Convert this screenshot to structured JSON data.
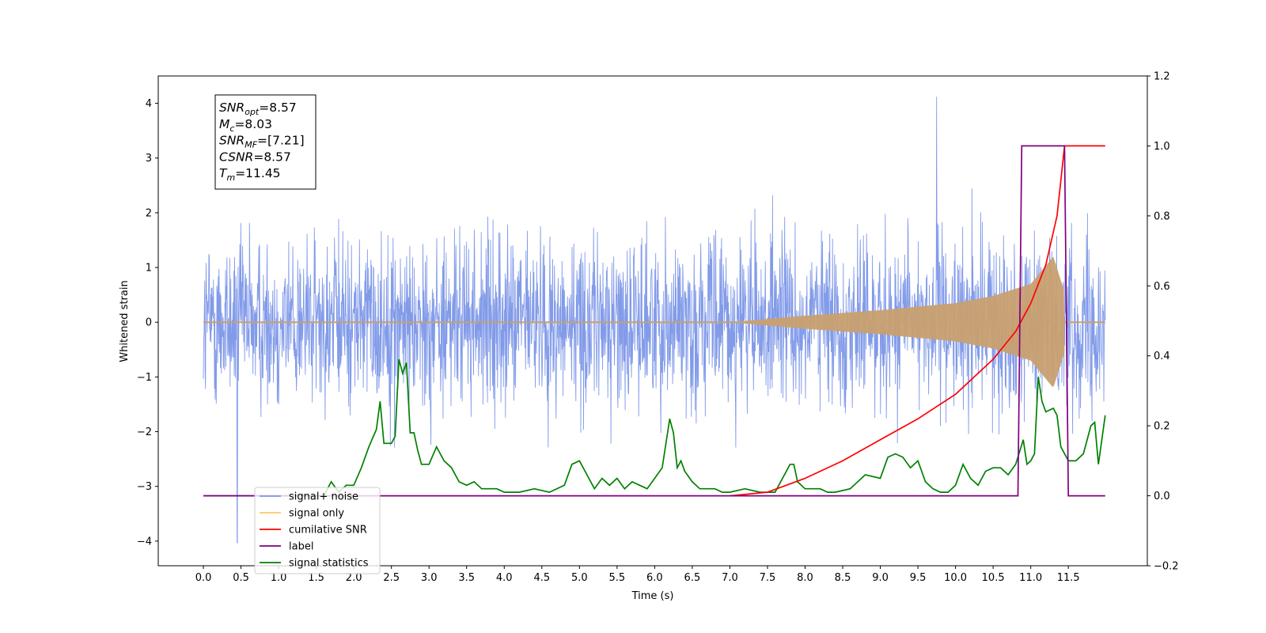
{
  "chart_data": {
    "type": "line",
    "xlabel": "Time (s)",
    "ylabel": "Whitened strain",
    "xlim": [
      -0.6,
      12.55
    ],
    "ylim": [
      -4.45,
      4.5
    ],
    "y2lim": [
      -0.2,
      1.2
    ],
    "x_ticks": [
      0.0,
      0.5,
      1.0,
      1.5,
      2.0,
      2.5,
      3.0,
      3.5,
      4.0,
      4.5,
      5.0,
      5.5,
      6.0,
      6.5,
      7.0,
      7.5,
      8.0,
      8.5,
      9.0,
      9.5,
      10.0,
      10.5,
      11.0,
      11.5
    ],
    "x_tick_labels": [
      "0.0",
      "0.5",
      "1.0",
      "1.5",
      "2.0",
      "2.5",
      "3.0",
      "3.5",
      "4.0",
      "4.5",
      "5.0",
      "5.5",
      "6.0",
      "6.5",
      "7.0",
      "7.5",
      "8.0",
      "8.5",
      "9.0",
      "9.5",
      "10.0",
      "10.5",
      "11.0",
      "11.5"
    ],
    "y_ticks": [
      -4,
      -3,
      -2,
      -1,
      0,
      1,
      2,
      3,
      4
    ],
    "y_tick_labels": [
      "−4",
      "−3",
      "−2",
      "−1",
      "0",
      "1",
      "2",
      "3",
      "4"
    ],
    "y2_ticks": [
      -0.2,
      0.0,
      0.2,
      0.4,
      0.6,
      0.8,
      1.0,
      1.2
    ],
    "y2_tick_labels": [
      "−0.2",
      "0.0",
      "0.2",
      "0.4",
      "0.6",
      "0.8",
      "1.0",
      "1.2"
    ],
    "grid": false,
    "legend_position": "bottom-left",
    "annotation": {
      "lines": [
        {
          "base": "SNR",
          "sub": "opt",
          "value": "=8.57"
        },
        {
          "base": "M",
          "sub": "c",
          "value": "=8.03"
        },
        {
          "base": "SNR",
          "sub": "MF",
          "value": "=[7.21]"
        },
        {
          "base": "CSNR",
          "sub": "",
          "value": "=8.57"
        },
        {
          "base": "T",
          "sub": "m",
          "value": "=11.45"
        }
      ]
    },
    "series": [
      {
        "name": "signal+ noise",
        "axis": "left",
        "color": "#7b96e8",
        "x_range": [
          0.0,
          11.99
        ],
        "envelope": "noise band roughly -2.7 to 2.7 with spikes up to 4.12 near t=9.75 and down to -4.03 near t=0.45"
      },
      {
        "name": "signal only",
        "axis": "left",
        "color": "#c8a070",
        "chirp_start": 7.0,
        "chirp_end": 11.45,
        "x": [
          0.0,
          7.0,
          8.0,
          9.0,
          10.0,
          10.5,
          11.0,
          11.3,
          11.45,
          11.99
        ],
        "amplitude": [
          0.0,
          0.0,
          0.12,
          0.22,
          0.35,
          0.48,
          0.7,
          1.2,
          0.55,
          0.0
        ]
      },
      {
        "name": "cumilative SNR",
        "axis": "right",
        "color": "#ff0000",
        "x": [
          7.0,
          7.5,
          8.0,
          8.5,
          9.0,
          9.5,
          10.0,
          10.5,
          10.8,
          11.0,
          11.2,
          11.35,
          11.45,
          11.99
        ],
        "values": [
          0.0,
          0.01,
          0.05,
          0.1,
          0.16,
          0.22,
          0.29,
          0.39,
          0.47,
          0.55,
          0.66,
          0.8,
          1.0,
          1.0
        ]
      },
      {
        "name": "label",
        "axis": "right",
        "color": "#800080",
        "x": [
          0.0,
          10.83,
          10.88,
          11.45,
          11.5,
          11.99
        ],
        "values": [
          0.0,
          0.0,
          1.0,
          1.0,
          0.0,
          0.0
        ]
      },
      {
        "name": "signal statistics",
        "axis": "right",
        "color": "#008000",
        "x": [
          0.0,
          1.6,
          1.7,
          1.8,
          1.9,
          2.0,
          2.1,
          2.2,
          2.3,
          2.35,
          2.4,
          2.5,
          2.55,
          2.6,
          2.65,
          2.7,
          2.75,
          2.8,
          2.85,
          2.9,
          3.0,
          3.1,
          3.2,
          3.3,
          3.4,
          3.5,
          3.6,
          3.7,
          3.8,
          3.9,
          4.0,
          4.2,
          4.4,
          4.6,
          4.8,
          4.9,
          5.0,
          5.1,
          5.2,
          5.3,
          5.4,
          5.5,
          5.6,
          5.7,
          5.8,
          5.9,
          6.0,
          6.1,
          6.2,
          6.25,
          6.3,
          6.35,
          6.4,
          6.5,
          6.6,
          6.7,
          6.8,
          6.9,
          7.0,
          7.2,
          7.4,
          7.6,
          7.7,
          7.8,
          7.85,
          7.9,
          8.0,
          8.1,
          8.2,
          8.3,
          8.4,
          8.6,
          8.8,
          9.0,
          9.1,
          9.2,
          9.3,
          9.4,
          9.5,
          9.6,
          9.7,
          9.8,
          9.9,
          10.0,
          10.1,
          10.2,
          10.3,
          10.4,
          10.5,
          10.6,
          10.7,
          10.8,
          10.9,
          10.95,
          11.0,
          11.05,
          11.1,
          11.15,
          11.2,
          11.3,
          11.35,
          11.4,
          11.5,
          11.6,
          11.7,
          11.8,
          11.85,
          11.9,
          11.99
        ],
        "values": [
          0.0,
          0.0,
          0.04,
          0.01,
          0.03,
          0.03,
          0.08,
          0.14,
          0.19,
          0.27,
          0.15,
          0.15,
          0.17,
          0.39,
          0.35,
          0.38,
          0.18,
          0.18,
          0.13,
          0.09,
          0.09,
          0.14,
          0.1,
          0.08,
          0.04,
          0.03,
          0.04,
          0.02,
          0.02,
          0.02,
          0.01,
          0.01,
          0.02,
          0.01,
          0.03,
          0.09,
          0.1,
          0.06,
          0.02,
          0.05,
          0.03,
          0.05,
          0.02,
          0.04,
          0.03,
          0.02,
          0.05,
          0.08,
          0.22,
          0.18,
          0.08,
          0.1,
          0.07,
          0.04,
          0.02,
          0.02,
          0.02,
          0.01,
          0.01,
          0.02,
          0.01,
          0.01,
          0.05,
          0.09,
          0.09,
          0.04,
          0.02,
          0.02,
          0.02,
          0.01,
          0.01,
          0.02,
          0.06,
          0.05,
          0.11,
          0.12,
          0.11,
          0.08,
          0.1,
          0.04,
          0.02,
          0.01,
          0.01,
          0.03,
          0.09,
          0.05,
          0.03,
          0.07,
          0.08,
          0.08,
          0.06,
          0.09,
          0.16,
          0.09,
          0.1,
          0.12,
          0.34,
          0.27,
          0.24,
          0.25,
          0.23,
          0.14,
          0.1,
          0.1,
          0.12,
          0.2,
          0.21,
          0.09,
          0.23
        ]
      }
    ]
  }
}
